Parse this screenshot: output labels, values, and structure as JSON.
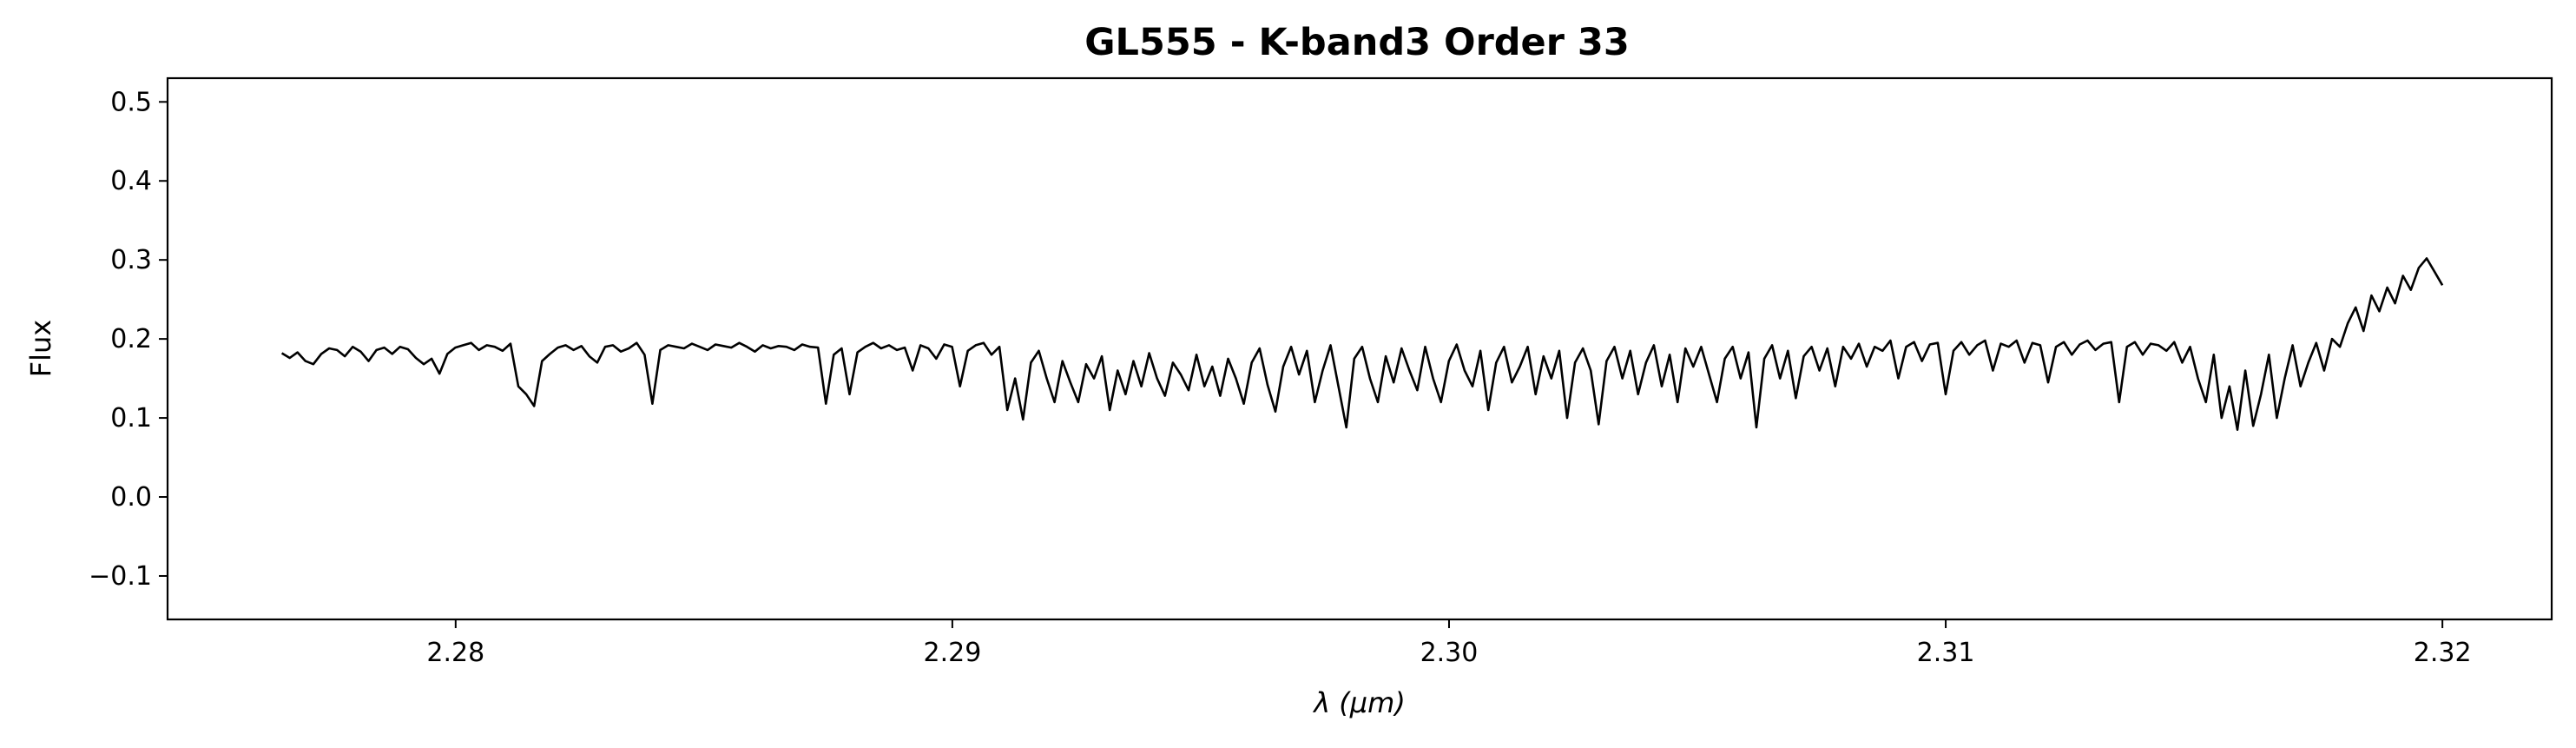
{
  "chart_data": {
    "type": "line",
    "title": "GL555 - K-band3 Order 33",
    "xlabel": "λ (μm)",
    "ylabel": "Flux",
    "xlim": [
      2.2742,
      2.3222
    ],
    "ylim": [
      -0.155,
      0.53
    ],
    "xticks": [
      2.28,
      2.29,
      2.3,
      2.31,
      2.32
    ],
    "xtick_labels": [
      "2.28",
      "2.29",
      "2.30",
      "2.31",
      "2.32"
    ],
    "yticks": [
      -0.1,
      0.0,
      0.1,
      0.2,
      0.3,
      0.4,
      0.5
    ],
    "ytick_labels": [
      "−0.1",
      "0.0",
      "0.1",
      "0.2",
      "0.3",
      "0.4",
      "0.5"
    ],
    "grid": false,
    "line_color": "#000000",
    "series": [
      {
        "x_start": 2.2765,
        "x_end": 2.32,
        "values": [
          0.182,
          0.176,
          0.183,
          0.172,
          0.168,
          0.181,
          0.188,
          0.186,
          0.178,
          0.19,
          0.184,
          0.172,
          0.186,
          0.189,
          0.181,
          0.19,
          0.187,
          0.176,
          0.168,
          0.175,
          0.156,
          0.181,
          0.189,
          0.192,
          0.195,
          0.186,
          0.192,
          0.19,
          0.185,
          0.194,
          0.14,
          0.13,
          0.115,
          0.172,
          0.181,
          0.189,
          0.192,
          0.186,
          0.191,
          0.178,
          0.17,
          0.19,
          0.192,
          0.184,
          0.188,
          0.195,
          0.18,
          0.118,
          0.186,
          0.192,
          0.19,
          0.188,
          0.194,
          0.19,
          0.186,
          0.193,
          0.191,
          0.189,
          0.195,
          0.19,
          0.184,
          0.192,
          0.188,
          0.191,
          0.19,
          0.186,
          0.193,
          0.19,
          0.189,
          0.118,
          0.18,
          0.188,
          0.13,
          0.183,
          0.19,
          0.195,
          0.188,
          0.192,
          0.186,
          0.189,
          0.16,
          0.192,
          0.188,
          0.175,
          0.193,
          0.19,
          0.14,
          0.185,
          0.192,
          0.195,
          0.18,
          0.19,
          0.11,
          0.15,
          0.098,
          0.17,
          0.185,
          0.15,
          0.12,
          0.172,
          0.145,
          0.12,
          0.168,
          0.15,
          0.178,
          0.11,
          0.16,
          0.13,
          0.172,
          0.14,
          0.182,
          0.15,
          0.128,
          0.17,
          0.155,
          0.135,
          0.18,
          0.14,
          0.165,
          0.128,
          0.175,
          0.15,
          0.118,
          0.17,
          0.188,
          0.142,
          0.108,
          0.165,
          0.19,
          0.155,
          0.185,
          0.12,
          0.16,
          0.192,
          0.14,
          0.088,
          0.175,
          0.19,
          0.15,
          0.12,
          0.178,
          0.145,
          0.188,
          0.16,
          0.135,
          0.19,
          0.15,
          0.12,
          0.172,
          0.193,
          0.16,
          0.14,
          0.185,
          0.11,
          0.17,
          0.19,
          0.145,
          0.165,
          0.19,
          0.13,
          0.178,
          0.15,
          0.185,
          0.1,
          0.17,
          0.188,
          0.16,
          0.092,
          0.172,
          0.19,
          0.15,
          0.185,
          0.13,
          0.17,
          0.192,
          0.14,
          0.18,
          0.12,
          0.188,
          0.165,
          0.19,
          0.155,
          0.12,
          0.175,
          0.19,
          0.15,
          0.183,
          0.088,
          0.175,
          0.192,
          0.15,
          0.185,
          0.125,
          0.178,
          0.19,
          0.16,
          0.188,
          0.14,
          0.19,
          0.175,
          0.194,
          0.165,
          0.19,
          0.185,
          0.198,
          0.15,
          0.19,
          0.196,
          0.172,
          0.193,
          0.195,
          0.13,
          0.185,
          0.196,
          0.18,
          0.192,
          0.198,
          0.16,
          0.194,
          0.19,
          0.198,
          0.17,
          0.195,
          0.192,
          0.145,
          0.19,
          0.196,
          0.18,
          0.193,
          0.198,
          0.186,
          0.194,
          0.196,
          0.12,
          0.19,
          0.196,
          0.18,
          0.194,
          0.192,
          0.185,
          0.196,
          0.17,
          0.19,
          0.15,
          0.12,
          0.18,
          0.1,
          0.14,
          0.085,
          0.16,
          0.09,
          0.13,
          0.18,
          0.1,
          0.15,
          0.192,
          0.14,
          0.17,
          0.195,
          0.16,
          0.2,
          0.19,
          0.22,
          0.24,
          0.21,
          0.255,
          0.235,
          0.265,
          0.245,
          0.28,
          0.262,
          0.29,
          0.302,
          0.285,
          0.268
        ]
      }
    ]
  }
}
